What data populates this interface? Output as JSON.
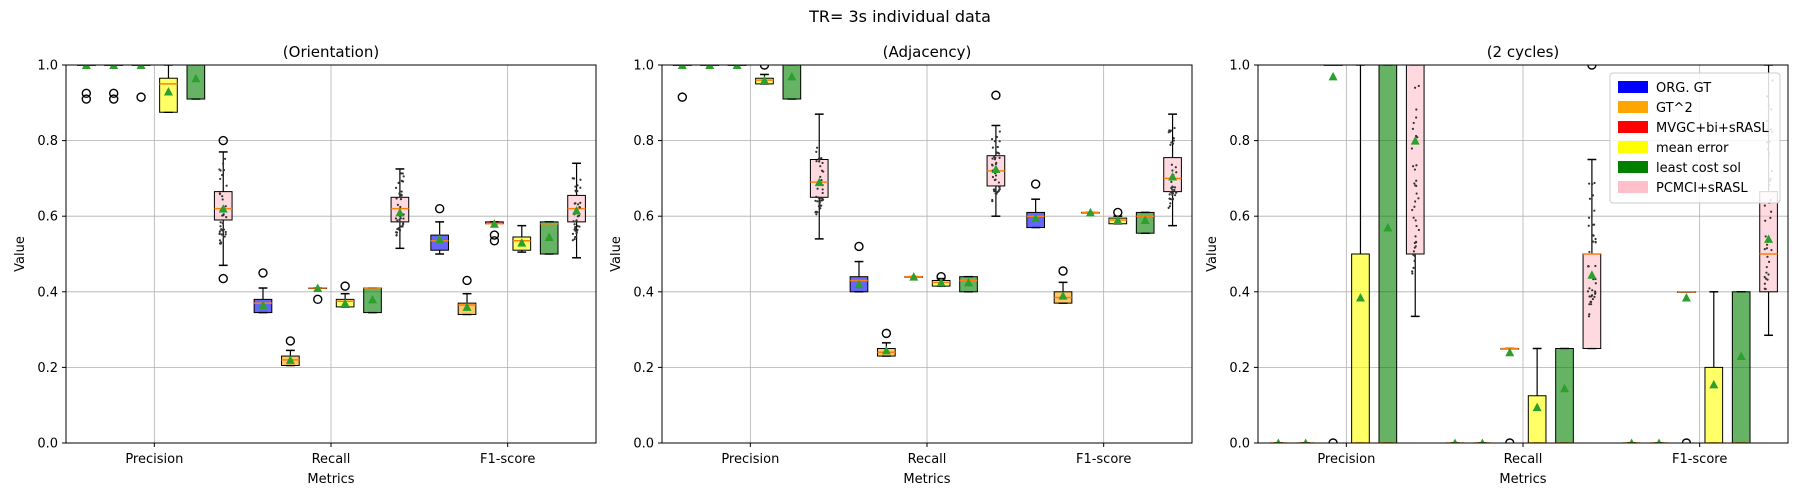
{
  "figure": {
    "suptitle": "TR= 3s individual data"
  },
  "legend": {
    "placement": "top-right of third panel",
    "entries": [
      {
        "label": "ORG. GT",
        "color": "#0000ff"
      },
      {
        "label": "GT^2",
        "color": "#ffa500"
      },
      {
        "label": "MVGC+bi+sRASL",
        "color": "#ff0000"
      },
      {
        "label": "mean error",
        "color": "#ffff00"
      },
      {
        "label": "least cost sol",
        "color": "#008000"
      },
      {
        "label": "PCMCI+sRASL",
        "color": "#ffc0cb"
      }
    ]
  },
  "chart_data": [
    {
      "type": "box",
      "title": "(Orientation)",
      "xlabel": "Metrics",
      "ylabel": "Value",
      "ylim": [
        0,
        1
      ],
      "yticks": [
        "0.0",
        "0.2",
        "0.4",
        "0.6",
        "0.8",
        "1.0"
      ],
      "grid": true,
      "categories": [
        "Precision",
        "Recall",
        "F1-score"
      ],
      "series": [
        {
          "name": "ORG. GT",
          "boxes": [
            {
              "q1": 1.0,
              "median": 1.0,
              "q3": 1.0,
              "lo": 1.0,
              "hi": 1.0,
              "mean": 1.0,
              "fliers": [
                0.91,
                0.925
              ]
            },
            {
              "q1": 0.345,
              "median": 0.37,
              "q3": 0.38,
              "lo": 0.345,
              "hi": 0.41,
              "mean": 0.365,
              "fliers": [
                0.45
              ]
            },
            {
              "q1": 0.51,
              "median": 0.535,
              "q3": 0.55,
              "lo": 0.5,
              "hi": 0.585,
              "mean": 0.54,
              "fliers": [
                0.62
              ]
            }
          ]
        },
        {
          "name": "GT^2",
          "boxes": [
            {
              "q1": 1.0,
              "median": 1.0,
              "q3": 1.0,
              "lo": 1.0,
              "hi": 1.0,
              "mean": 1.0,
              "fliers": [
                0.91,
                0.925
              ]
            },
            {
              "q1": 0.205,
              "median": 0.22,
              "q3": 0.23,
              "lo": 0.205,
              "hi": 0.245,
              "mean": 0.22,
              "fliers": [
                0.27
              ]
            },
            {
              "q1": 0.34,
              "median": 0.365,
              "q3": 0.37,
              "lo": 0.34,
              "hi": 0.395,
              "mean": 0.36,
              "fliers": [
                0.43
              ]
            }
          ]
        },
        {
          "name": "MVGC+bi+sRASL",
          "boxes": [
            {
              "q1": 1.0,
              "median": 1.0,
              "q3": 1.0,
              "lo": 1.0,
              "hi": 1.0,
              "mean": 1.0,
              "fliers": [
                0.915
              ]
            },
            {
              "q1": 0.41,
              "median": 0.41,
              "q3": 0.41,
              "lo": 0.41,
              "hi": 0.41,
              "mean": 0.41,
              "fliers": [
                0.38
              ]
            },
            {
              "q1": 0.58,
              "median": 0.58,
              "q3": 0.585,
              "lo": 0.58,
              "hi": 0.585,
              "mean": 0.58,
              "fliers": [
                0.55,
                0.535
              ]
            }
          ]
        },
        {
          "name": "mean error",
          "boxes": [
            {
              "q1": 0.875,
              "median": 0.95,
              "q3": 0.965,
              "lo": 0.875,
              "hi": 1.0,
              "mean": 0.93,
              "fliers": []
            },
            {
              "q1": 0.36,
              "median": 0.375,
              "q3": 0.38,
              "lo": 0.36,
              "hi": 0.395,
              "mean": 0.37,
              "fliers": [
                0.415
              ]
            },
            {
              "q1": 0.51,
              "median": 0.535,
              "q3": 0.545,
              "lo": 0.505,
              "hi": 0.575,
              "mean": 0.53,
              "fliers": []
            }
          ]
        },
        {
          "name": "least cost sol",
          "boxes": [
            {
              "q1": 0.91,
              "median": 1.0,
              "q3": 1.0,
              "lo": 0.91,
              "hi": 1.0,
              "mean": 0.965,
              "fliers": []
            },
            {
              "q1": 0.345,
              "median": 0.41,
              "q3": 0.41,
              "lo": 0.345,
              "hi": 0.41,
              "mean": 0.38,
              "fliers": []
            },
            {
              "q1": 0.5,
              "median": 0.58,
              "q3": 0.585,
              "lo": 0.5,
              "hi": 0.585,
              "mean": 0.545,
              "fliers": []
            }
          ]
        },
        {
          "name": "PCMCI+sRASL",
          "boxes": [
            {
              "q1": 0.59,
              "median": 0.62,
              "q3": 0.665,
              "lo": 0.47,
              "hi": 0.77,
              "mean": 0.62,
              "fliers": [
                0.8,
                0.435
              ]
            },
            {
              "q1": 0.585,
              "median": 0.62,
              "q3": 0.65,
              "lo": 0.515,
              "hi": 0.725,
              "mean": 0.61,
              "fliers": []
            },
            {
              "q1": 0.585,
              "median": 0.62,
              "q3": 0.655,
              "lo": 0.49,
              "hi": 0.74,
              "mean": 0.615,
              "fliers": []
            }
          ]
        }
      ]
    },
    {
      "type": "box",
      "title": "(Adjacency)",
      "xlabel": "Metrics",
      "ylabel": "Value",
      "ylim": [
        0,
        1
      ],
      "yticks": [
        "0.0",
        "0.2",
        "0.4",
        "0.6",
        "0.8",
        "1.0"
      ],
      "grid": true,
      "categories": [
        "Precision",
        "Recall",
        "F1-score"
      ],
      "series": [
        {
          "name": "ORG. GT",
          "boxes": [
            {
              "q1": 1.0,
              "median": 1.0,
              "q3": 1.0,
              "lo": 1.0,
              "hi": 1.0,
              "mean": 1.0,
              "fliers": [
                0.915
              ]
            },
            {
              "q1": 0.4,
              "median": 0.43,
              "q3": 0.44,
              "lo": 0.4,
              "hi": 0.48,
              "mean": 0.42,
              "fliers": [
                0.52
              ]
            },
            {
              "q1": 0.57,
              "median": 0.6,
              "q3": 0.61,
              "lo": 0.57,
              "hi": 0.645,
              "mean": 0.595,
              "fliers": [
                0.685
              ]
            }
          ]
        },
        {
          "name": "GT^2",
          "boxes": [
            {
              "q1": 1.0,
              "median": 1.0,
              "q3": 1.0,
              "lo": 1.0,
              "hi": 1.0,
              "mean": 1.0,
              "fliers": []
            },
            {
              "q1": 0.23,
              "median": 0.24,
              "q3": 0.25,
              "lo": 0.23,
              "hi": 0.265,
              "mean": 0.245,
              "fliers": [
                0.29
              ]
            },
            {
              "q1": 0.37,
              "median": 0.385,
              "q3": 0.4,
              "lo": 0.37,
              "hi": 0.425,
              "mean": 0.39,
              "fliers": [
                0.455
              ]
            }
          ]
        },
        {
          "name": "MVGC+bi+sRASL",
          "boxes": [
            {
              "q1": 1.0,
              "median": 1.0,
              "q3": 1.0,
              "lo": 1.0,
              "hi": 1.0,
              "mean": 1.0,
              "fliers": []
            },
            {
              "q1": 0.44,
              "median": 0.44,
              "q3": 0.44,
              "lo": 0.44,
              "hi": 0.44,
              "mean": 0.44,
              "fliers": []
            },
            {
              "q1": 0.61,
              "median": 0.61,
              "q3": 0.61,
              "lo": 0.61,
              "hi": 0.61,
              "mean": 0.61,
              "fliers": []
            }
          ]
        },
        {
          "name": "mean error",
          "boxes": [
            {
              "q1": 0.95,
              "median": 0.96,
              "q3": 0.965,
              "lo": 0.95,
              "hi": 0.975,
              "mean": 0.96,
              "fliers": [
                1.0
              ]
            },
            {
              "q1": 0.415,
              "median": 0.425,
              "q3": 0.43,
              "lo": 0.415,
              "hi": 0.435,
              "mean": 0.425,
              "fliers": [
                0.44
              ]
            },
            {
              "q1": 0.58,
              "median": 0.59,
              "q3": 0.595,
              "lo": 0.58,
              "hi": 0.6,
              "mean": 0.59,
              "fliers": [
                0.61
              ]
            }
          ]
        },
        {
          "name": "least cost sol",
          "boxes": [
            {
              "q1": 0.91,
              "median": 1.0,
              "q3": 1.0,
              "lo": 0.91,
              "hi": 1.0,
              "mean": 0.97,
              "fliers": []
            },
            {
              "q1": 0.4,
              "median": 0.43,
              "q3": 0.44,
              "lo": 0.4,
              "hi": 0.44,
              "mean": 0.425,
              "fliers": []
            },
            {
              "q1": 0.555,
              "median": 0.6,
              "q3": 0.61,
              "lo": 0.555,
              "hi": 0.61,
              "mean": 0.59,
              "fliers": []
            }
          ]
        },
        {
          "name": "PCMCI+sRASL",
          "boxes": [
            {
              "q1": 0.65,
              "median": 0.69,
              "q3": 0.75,
              "lo": 0.54,
              "hi": 0.87,
              "mean": 0.69,
              "fliers": []
            },
            {
              "q1": 0.68,
              "median": 0.72,
              "q3": 0.76,
              "lo": 0.6,
              "hi": 0.84,
              "mean": 0.725,
              "fliers": [
                0.92
              ]
            },
            {
              "q1": 0.665,
              "median": 0.7,
              "q3": 0.755,
              "lo": 0.575,
              "hi": 0.87,
              "mean": 0.705,
              "fliers": []
            }
          ]
        }
      ]
    },
    {
      "type": "box",
      "title": "(2 cycles)",
      "xlabel": "Metrics",
      "ylabel": "Value",
      "ylim": [
        0,
        1
      ],
      "yticks": [
        "0.0",
        "0.2",
        "0.4",
        "0.6",
        "0.8",
        "1.0"
      ],
      "grid": true,
      "categories": [
        "Precision",
        "Recall",
        "F1-score"
      ],
      "series": [
        {
          "name": "ORG. GT",
          "boxes": [
            {
              "q1": 0,
              "median": 0,
              "q3": 0,
              "lo": 0,
              "hi": 0,
              "mean": 0,
              "fliers": []
            },
            {
              "q1": 0,
              "median": 0,
              "q3": 0,
              "lo": 0,
              "hi": 0,
              "mean": 0,
              "fliers": []
            },
            {
              "q1": 0,
              "median": 0,
              "q3": 0,
              "lo": 0,
              "hi": 0,
              "mean": 0,
              "fliers": []
            }
          ]
        },
        {
          "name": "GT^2",
          "boxes": [
            {
              "q1": 0,
              "median": 0,
              "q3": 0,
              "lo": 0,
              "hi": 0,
              "mean": 0,
              "fliers": []
            },
            {
              "q1": 0,
              "median": 0,
              "q3": 0,
              "lo": 0,
              "hi": 0,
              "mean": 0,
              "fliers": []
            },
            {
              "q1": 0,
              "median": 0,
              "q3": 0,
              "lo": 0,
              "hi": 0,
              "mean": 0,
              "fliers": []
            }
          ]
        },
        {
          "name": "MVGC+bi+sRASL",
          "boxes": [
            {
              "q1": 1.0,
              "median": 1.0,
              "q3": 1.0,
              "lo": 1.0,
              "hi": 1.0,
              "mean": 0.97,
              "fliers": [
                0
              ]
            },
            {
              "q1": 0.25,
              "median": 0.25,
              "q3": 0.25,
              "lo": 0.25,
              "hi": 0.25,
              "mean": 0.24,
              "fliers": [
                0
              ]
            },
            {
              "q1": 0.4,
              "median": 0.4,
              "q3": 0.4,
              "lo": 0.4,
              "hi": 0.4,
              "mean": 0.385,
              "fliers": [
                0
              ]
            }
          ]
        },
        {
          "name": "mean error",
          "boxes": [
            {
              "q1": 0,
              "median": 0,
              "q3": 0.5,
              "lo": 0,
              "hi": 1.0,
              "mean": 0.385,
              "fliers": []
            },
            {
              "q1": 0,
              "median": 0,
              "q3": 0.125,
              "lo": 0,
              "hi": 0.25,
              "mean": 0.095,
              "fliers": []
            },
            {
              "q1": 0,
              "median": 0,
              "q3": 0.2,
              "lo": 0,
              "hi": 0.4,
              "mean": 0.155,
              "fliers": []
            }
          ]
        },
        {
          "name": "least cost sol",
          "boxes": [
            {
              "q1": 0,
              "median": 0,
              "q3": 1.0,
              "lo": 0,
              "hi": 1.0,
              "mean": 0.57,
              "fliers": []
            },
            {
              "q1": 0,
              "median": 0,
              "q3": 0.25,
              "lo": 0,
              "hi": 0.25,
              "mean": 0.145,
              "fliers": []
            },
            {
              "q1": 0,
              "median": 0,
              "q3": 0.4,
              "lo": 0,
              "hi": 0.4,
              "mean": 0.23,
              "fliers": []
            }
          ]
        },
        {
          "name": "PCMCI+sRASL",
          "boxes": [
            {
              "q1": 0.5,
              "median": 1.0,
              "q3": 1.0,
              "lo": 0.335,
              "hi": 1.0,
              "mean": 0.8,
              "fliers": []
            },
            {
              "q1": 0.25,
              "median": 0.5,
              "q3": 0.5,
              "lo": 0.25,
              "hi": 0.75,
              "mean": 0.445,
              "fliers": [
                1.0
              ]
            },
            {
              "q1": 0.4,
              "median": 0.5,
              "q3": 0.665,
              "lo": 0.285,
              "hi": 1.0,
              "mean": 0.54,
              "fliers": []
            }
          ]
        }
      ]
    }
  ]
}
